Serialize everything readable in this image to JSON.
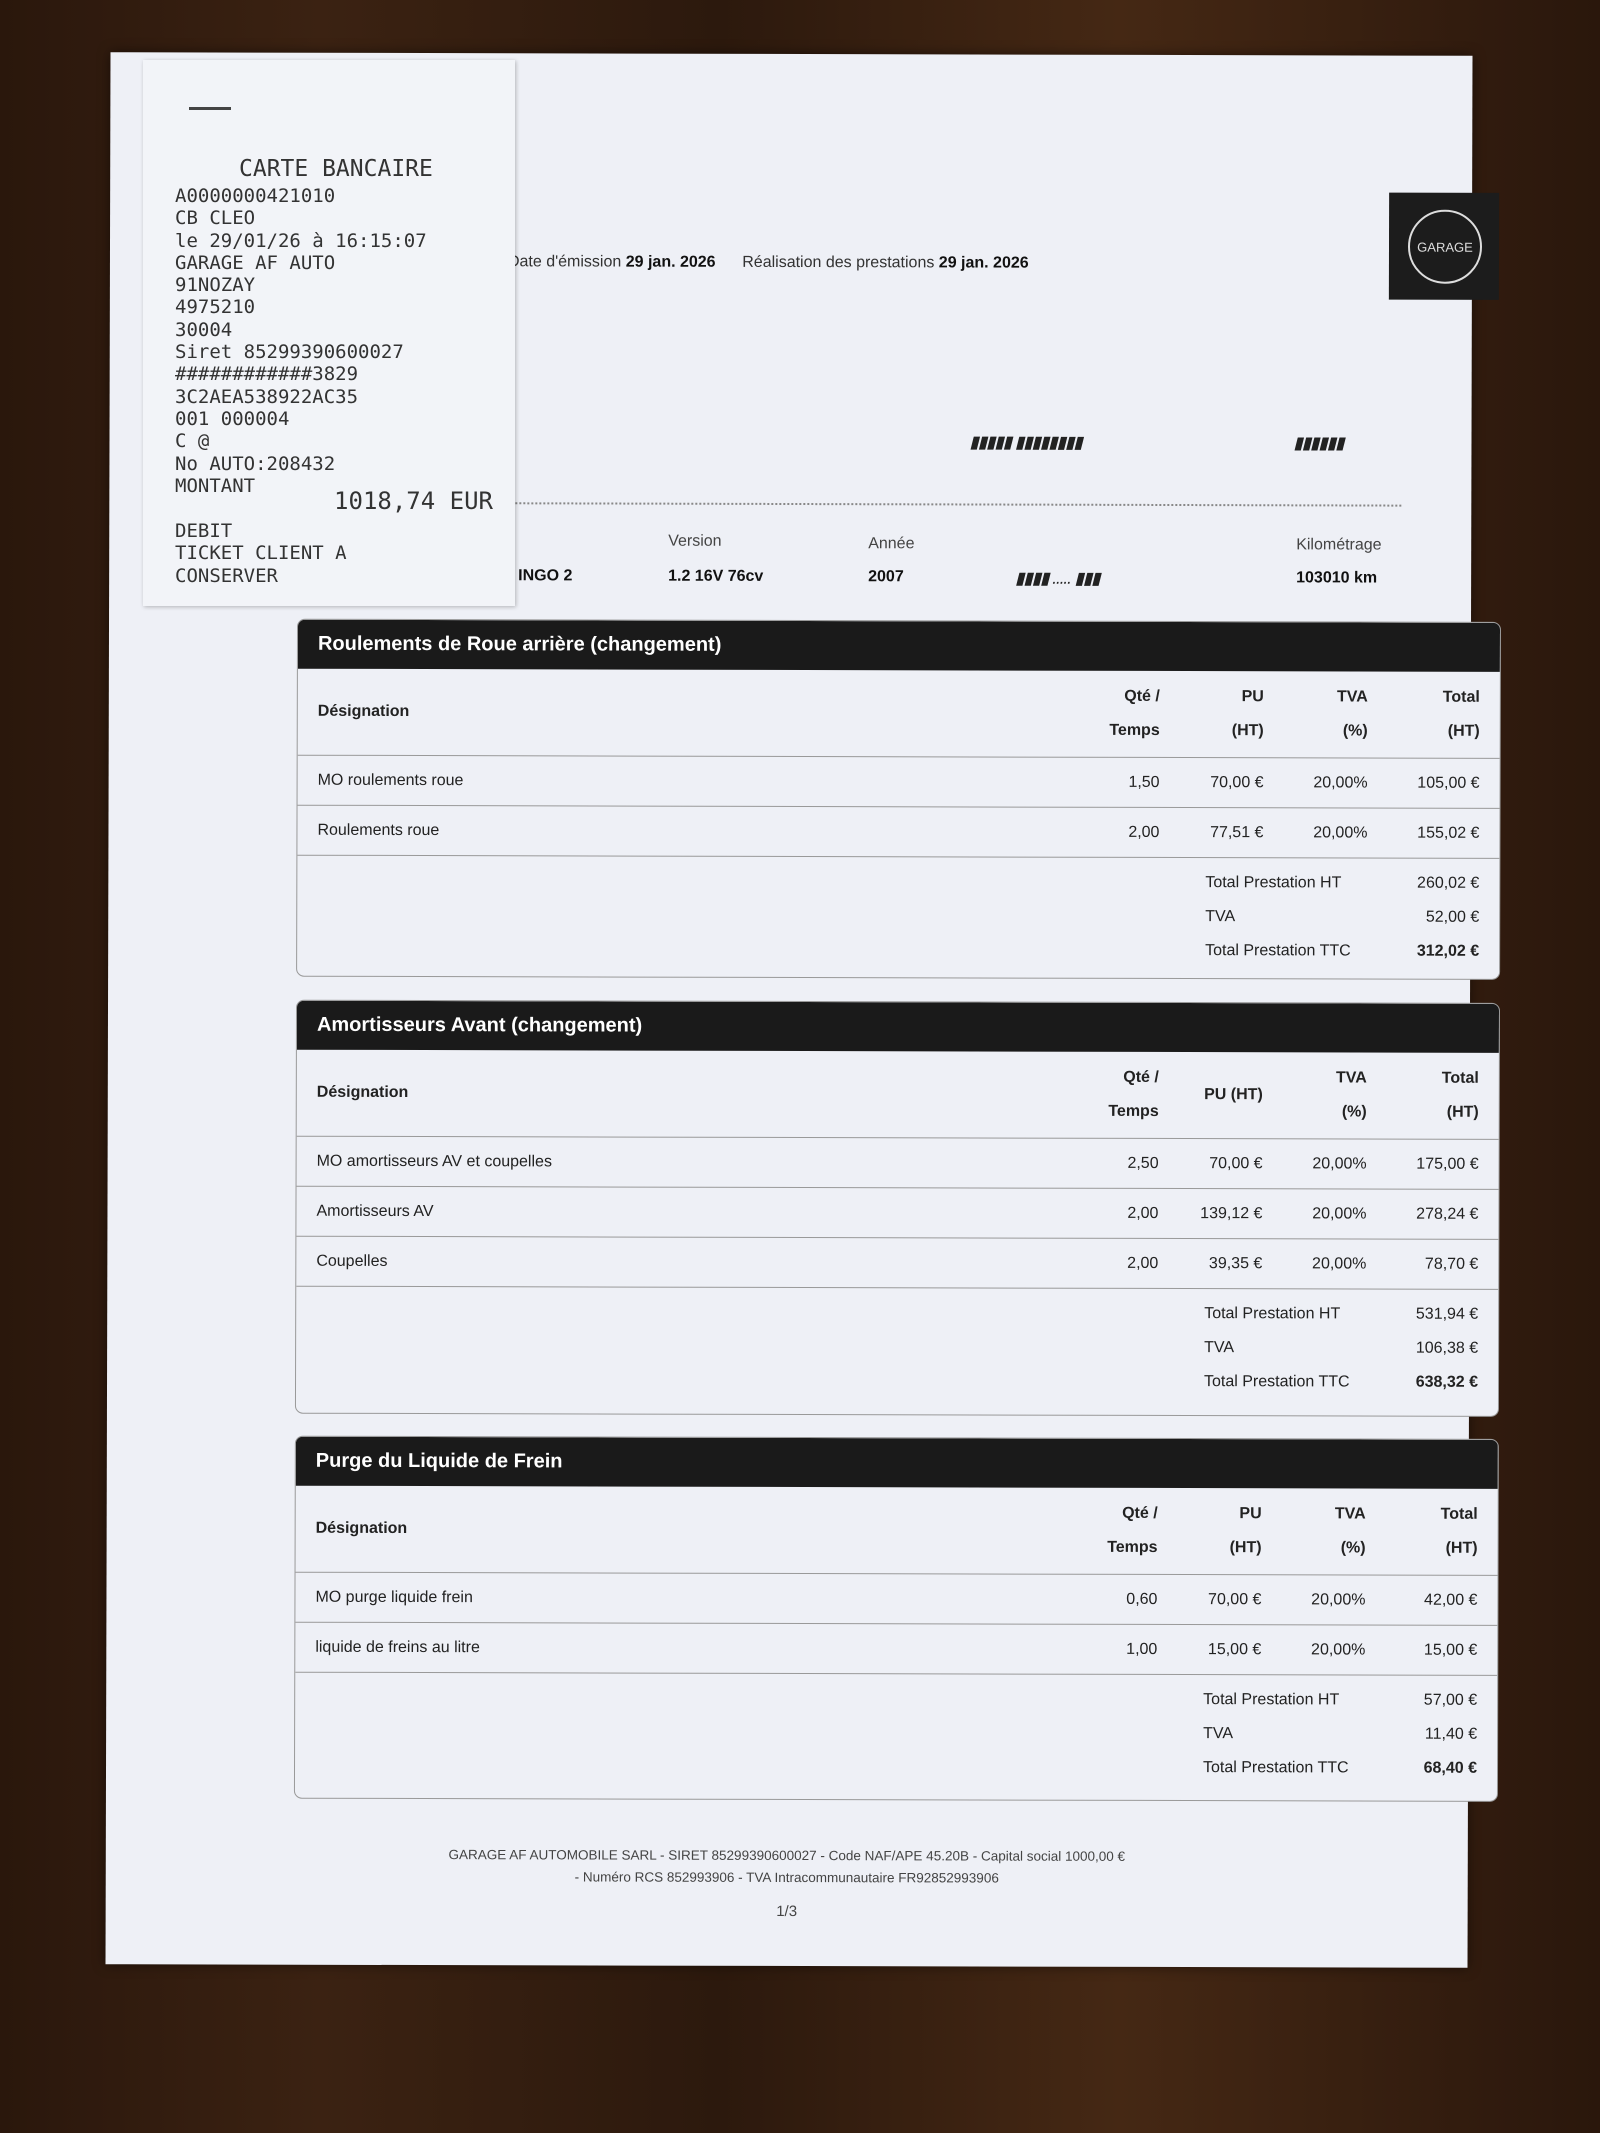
{
  "receipt": {
    "title": "CARTE BANCAIRE",
    "lines": [
      "A0000000421010",
      "CB CLEO",
      "le 29/01/26 à 16:15:07",
      "GARAGE AF AUTO",
      "91NOZAY",
      "4975210",
      "30004",
      "Siret 85299390600027",
      "############3829",
      "3C2AEA538922AC35",
      "001 000004",
      "C @",
      "No AUTO:208432",
      "MONTANT"
    ],
    "amount": "1018,74 EUR",
    "tail": [
      "DEBIT",
      "TICKET CLIENT A",
      "CONSERVER"
    ]
  },
  "logo": {
    "text": "GARAGE"
  },
  "meta": {
    "emission_label": "Date d'émission",
    "emission_value": "29 jan. 2026",
    "realisation_label": "Réalisation des prestations",
    "realisation_value": "29 jan. 2026"
  },
  "vehicle": {
    "model_value": "INGO 2",
    "version_label": "Version",
    "version_value": "1.2 16V 76cv",
    "annee_label": "Année",
    "annee_value": "2007",
    "km_label": "Kilométrage",
    "km_value": "103010 km"
  },
  "columns": {
    "designation": "Désignation",
    "qte": "Qté /",
    "temps": "Temps",
    "pu": "PU",
    "pu_ht": "PU (HT)",
    "ht": "(HT)",
    "tva": "TVA",
    "pct": "(%)",
    "total": "Total"
  },
  "sections": [
    {
      "title": "Roulements de Roue arrière (changement)",
      "rows": [
        {
          "designation": "MO roulements roue",
          "qte": "1,50",
          "pu": "70,00 €",
          "tva": "20,00%",
          "total": "105,00 €"
        },
        {
          "designation": "Roulements roue",
          "qte": "2,00",
          "pu": "77,51 €",
          "tva": "20,00%",
          "total": "155,02 €"
        }
      ],
      "totals": {
        "ht_label": "Total Prestation HT",
        "ht": "260,02 €",
        "tva_label": "TVA",
        "tva": "52,00 €",
        "ttc_label": "Total Prestation TTC",
        "ttc": "312,02 €"
      }
    },
    {
      "title": "Amortisseurs Avant (changement)",
      "rows": [
        {
          "designation": "MO amortisseurs AV et coupelles",
          "qte": "2,50",
          "pu": "70,00 €",
          "tva": "20,00%",
          "total": "175,00 €"
        },
        {
          "designation": "Amortisseurs AV",
          "qte": "2,00",
          "pu": "139,12 €",
          "tva": "20,00%",
          "total": "278,24 €"
        },
        {
          "designation": "Coupelles",
          "qte": "2,00",
          "pu": "39,35 €",
          "tva": "20,00%",
          "total": "78,70 €"
        }
      ],
      "totals": {
        "ht_label": "Total Prestation HT",
        "ht": "531,94 €",
        "tva_label": "TVA",
        "tva": "106,38 €",
        "ttc_label": "Total Prestation TTC",
        "ttc": "638,32 €"
      }
    },
    {
      "title": "Purge du Liquide de Frein",
      "rows": [
        {
          "designation": "MO purge liquide frein",
          "qte": "0,60",
          "pu": "70,00 €",
          "tva": "20,00%",
          "total": "42,00 €"
        },
        {
          "designation": "liquide de freins au litre",
          "qte": "1,00",
          "pu": "15,00 €",
          "tva": "20,00%",
          "total": "15,00 €"
        }
      ],
      "totals": {
        "ht_label": "Total Prestation HT",
        "ht": "57,00 €",
        "tva_label": "TVA",
        "tva": "11,40 €",
        "ttc_label": "Total Prestation TTC",
        "ttc": "68,40 €"
      }
    }
  ],
  "footer": {
    "line1": "GARAGE AF AUTOMOBILE SARL - SIRET 85299390600027 - Code NAF/APE 45.20B - Capital social 1000,00 €",
    "line2": "- Numéro RCS 852993906 - TVA Intracommunautaire FR92852993906",
    "page": "1/3"
  }
}
